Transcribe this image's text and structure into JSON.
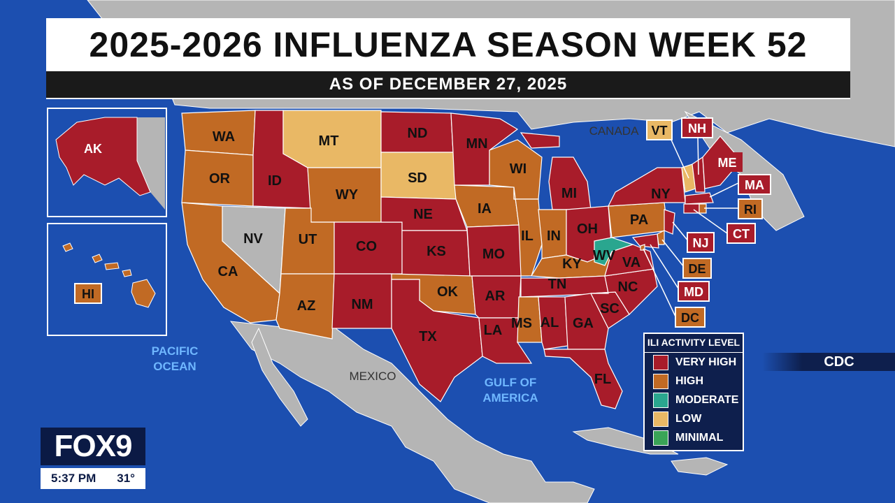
{
  "header": {
    "title": "2025-2026 INFLUENZA SEASON WEEK 52",
    "subtitle": "AS OF DECEMBER 27, 2025"
  },
  "map_labels": {
    "canada": "CANADA",
    "mexico": "MEXICO",
    "pacific": [
      "PACIFIC",
      "OCEAN"
    ],
    "gulf": [
      "GULF OF",
      "AMERICA"
    ]
  },
  "levels": {
    "very_high": "#a81c2a",
    "high": "#c16a24",
    "moderate": "#2aa68f",
    "low": "#e9b865",
    "minimal": "#3aa457",
    "no_data": "#b5b5b5"
  },
  "states": [
    {
      "code": "WA",
      "level": "high"
    },
    {
      "code": "OR",
      "level": "high"
    },
    {
      "code": "CA",
      "level": "high"
    },
    {
      "code": "NV",
      "level": "no_data"
    },
    {
      "code": "ID",
      "level": "very_high"
    },
    {
      "code": "MT",
      "level": "low"
    },
    {
      "code": "WY",
      "level": "high"
    },
    {
      "code": "UT",
      "level": "high"
    },
    {
      "code": "AZ",
      "level": "high"
    },
    {
      "code": "CO",
      "level": "very_high"
    },
    {
      "code": "NM",
      "level": "very_high"
    },
    {
      "code": "ND",
      "level": "very_high"
    },
    {
      "code": "SD",
      "level": "low"
    },
    {
      "code": "NE",
      "level": "very_high"
    },
    {
      "code": "KS",
      "level": "very_high"
    },
    {
      "code": "OK",
      "level": "high"
    },
    {
      "code": "TX",
      "level": "very_high"
    },
    {
      "code": "MN",
      "level": "very_high"
    },
    {
      "code": "IA",
      "level": "high"
    },
    {
      "code": "MO",
      "level": "very_high"
    },
    {
      "code": "AR",
      "level": "very_high"
    },
    {
      "code": "LA",
      "level": "very_high"
    },
    {
      "code": "WI",
      "level": "high"
    },
    {
      "code": "IL",
      "level": "high"
    },
    {
      "code": "MI",
      "level": "very_high"
    },
    {
      "code": "IN",
      "level": "high"
    },
    {
      "code": "OH",
      "level": "very_high"
    },
    {
      "code": "KY",
      "level": "high"
    },
    {
      "code": "TN",
      "level": "very_high"
    },
    {
      "code": "MS",
      "level": "high"
    },
    {
      "code": "AL",
      "level": "very_high"
    },
    {
      "code": "GA",
      "level": "very_high"
    },
    {
      "code": "FL",
      "level": "very_high"
    },
    {
      "code": "SC",
      "level": "very_high"
    },
    {
      "code": "NC",
      "level": "very_high"
    },
    {
      "code": "VA",
      "level": "very_high"
    },
    {
      "code": "WV",
      "level": "moderate"
    },
    {
      "code": "PA",
      "level": "high"
    },
    {
      "code": "NY",
      "level": "very_high"
    },
    {
      "code": "ME",
      "level": "very_high"
    },
    {
      "code": "VT",
      "level": "low"
    },
    {
      "code": "NH",
      "level": "very_high"
    },
    {
      "code": "MA",
      "level": "very_high"
    },
    {
      "code": "RI",
      "level": "high"
    },
    {
      "code": "CT",
      "level": "very_high"
    },
    {
      "code": "NJ",
      "level": "very_high"
    },
    {
      "code": "DE",
      "level": "high"
    },
    {
      "code": "MD",
      "level": "very_high"
    },
    {
      "code": "DC",
      "level": "high"
    },
    {
      "code": "AK",
      "level": "very_high"
    },
    {
      "code": "HI",
      "level": "high"
    }
  ],
  "legend": {
    "title": "ILI ACTIVITY LEVEL",
    "items": [
      {
        "label": "VERY HIGH",
        "level": "very_high"
      },
      {
        "label": "HIGH",
        "level": "high"
      },
      {
        "label": "MODERATE",
        "level": "moderate"
      },
      {
        "label": "LOW",
        "level": "low"
      },
      {
        "label": "MINIMAL",
        "level": "minimal"
      }
    ]
  },
  "source": "CDC",
  "station": {
    "logo": "FOX9",
    "time": "5:37 PM",
    "temp": "31°"
  }
}
